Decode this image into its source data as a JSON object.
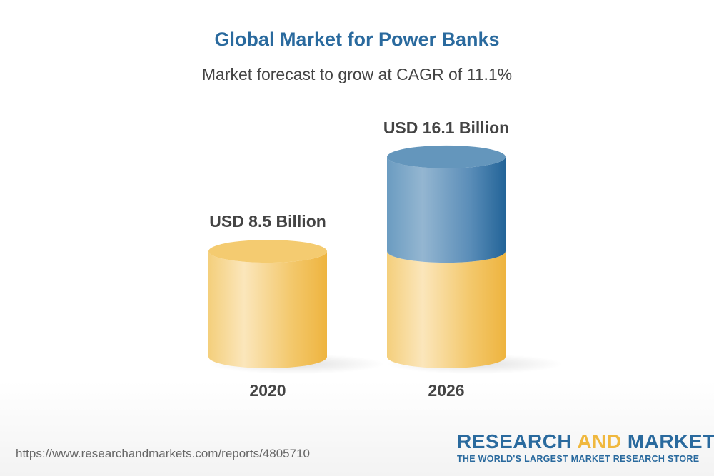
{
  "chart_data": {
    "type": "bar",
    "title": "Global Market for Power Banks",
    "subtitle": "Market forecast to grow at CAGR of 11.1%",
    "categories": [
      "2020",
      "2026"
    ],
    "values": [
      8.5,
      16.1
    ],
    "data_labels": [
      "USD 8.5 Billion",
      "USD 16.1 Billion"
    ],
    "unit": "USD Billion",
    "style": "3d-cylinder",
    "colors": {
      "base": "#f2c05a",
      "growth": "#2a6a9e"
    }
  },
  "footer": {
    "url": "https://www.researchandmarkets.com/reports/4805710",
    "logo_word1": "RESEARCH",
    "logo_word2": "AND",
    "logo_word3": "MARKETS",
    "logo_tagline": "THE WORLD'S LARGEST MARKET RESEARCH STORE"
  }
}
